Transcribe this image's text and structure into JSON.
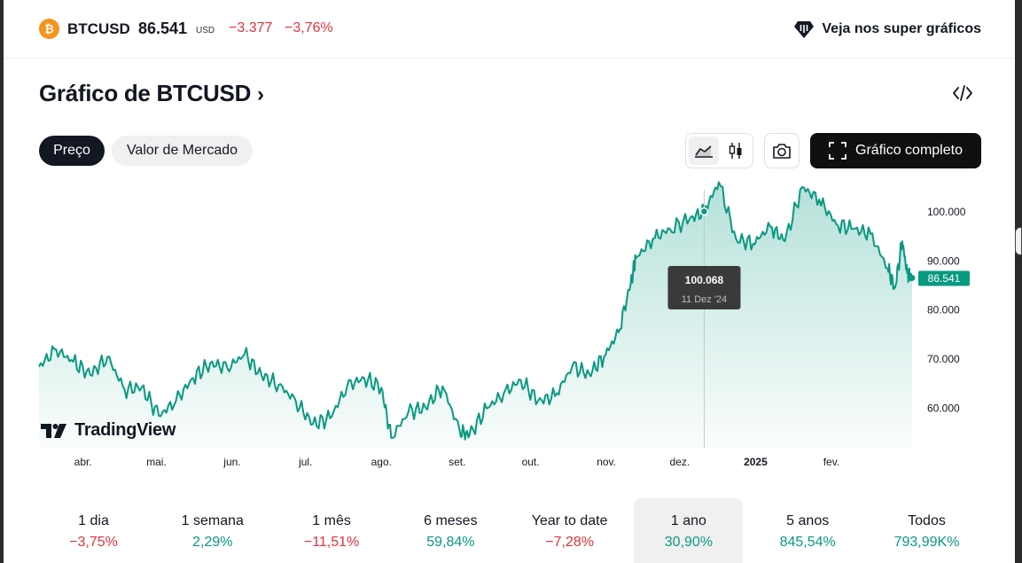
{
  "header": {
    "coin_glyph": "₿",
    "symbol": "BTCUSD",
    "price": "86.541",
    "currency": "USD",
    "change": "−3.377",
    "change_pct": "−3,76%",
    "super_charts_label": "Veja nos super gráficos"
  },
  "page": {
    "title": "Gráfico de BTCUSD",
    "chevron": "›"
  },
  "tabs": [
    {
      "label": "Preço",
      "active": true
    },
    {
      "label": "Valor de Mercado",
      "active": false
    }
  ],
  "toolbar": {
    "full_chart_label": "Gráfico completo"
  },
  "colors": {
    "line": "#089981",
    "negative": "#e0333c",
    "positive": "#089981",
    "tooltip_bg": "#3a3a3a"
  },
  "chart_data": {
    "type": "area",
    "x_tick_labels": [
      "abr.",
      "mai.",
      "jun.",
      "jul.",
      "ago.",
      "set.",
      "out.",
      "nov.",
      "dez.",
      "2025",
      "fev."
    ],
    "y_tick_labels": [
      "100.000",
      "90.000",
      "80.000",
      "70.000",
      "60.000"
    ],
    "yticks": [
      100000,
      90000,
      80000,
      70000,
      60000
    ],
    "ylim": [
      52000,
      107000
    ],
    "last_value_label": "86.541",
    "last_value": 86541,
    "tooltip": {
      "value": "100.068",
      "date": "11 Dez '24",
      "x": "2024-12-11",
      "y": 100068
    },
    "series": [
      {
        "x": [
          "2024-03-14",
          "2024-03-21",
          "2024-03-28",
          "2024-04-04",
          "2024-04-11",
          "2024-04-18",
          "2024-04-25",
          "2024-05-02",
          "2024-05-09",
          "2024-05-16",
          "2024-05-23",
          "2024-05-30",
          "2024-06-06",
          "2024-06-13",
          "2024-06-20",
          "2024-06-27",
          "2024-07-04",
          "2024-07-11",
          "2024-07-18",
          "2024-07-25",
          "2024-08-01",
          "2024-08-05",
          "2024-08-12",
          "2024-08-19",
          "2024-08-26",
          "2024-09-02",
          "2024-09-06",
          "2024-09-13",
          "2024-09-20",
          "2024-09-27",
          "2024-10-04",
          "2024-10-11",
          "2024-10-18",
          "2024-10-25",
          "2024-10-31",
          "2024-11-06",
          "2024-11-11",
          "2024-11-13",
          "2024-11-20",
          "2024-11-27",
          "2024-12-05",
          "2024-12-11",
          "2024-12-17",
          "2024-12-24",
          "2024-12-31",
          "2025-01-07",
          "2025-01-13",
          "2025-01-20",
          "2025-01-27",
          "2025-02-03",
          "2025-02-10",
          "2025-02-17",
          "2025-02-24",
          "2025-02-27",
          "2025-03-02",
          "2025-03-04",
          "2025-03-06"
        ],
        "y": [
          68500,
          72000,
          69500,
          66800,
          70500,
          63800,
          64300,
          58500,
          61500,
          66200,
          69200,
          68200,
          71000,
          66700,
          64800,
          61500,
          56800,
          58000,
          64500,
          66200,
          64200,
          54000,
          59200,
          60200,
          64500,
          55500,
          54500,
          60000,
          63000,
          65800,
          61500,
          62500,
          68500,
          67000,
          70500,
          75500,
          85500,
          90500,
          94500,
          96500,
          98500,
          100068,
          106000,
          94500,
          93500,
          97000,
          94000,
          105000,
          102500,
          97500,
          96500,
          95500,
          88500,
          84500,
          94000,
          87500,
          86541
        ]
      }
    ]
  },
  "brand": {
    "name": "TradingView"
  },
  "periods": [
    {
      "label": "1 dia",
      "value": "−3,75%",
      "sign": "neg",
      "selected": false
    },
    {
      "label": "1 semana",
      "value": "2,29%",
      "sign": "pos",
      "selected": false
    },
    {
      "label": "1 mês",
      "value": "−11,51%",
      "sign": "neg",
      "selected": false
    },
    {
      "label": "6 meses",
      "value": "59,84%",
      "sign": "pos",
      "selected": false
    },
    {
      "label": "Year to date",
      "value": "−7,28%",
      "sign": "neg",
      "selected": false
    },
    {
      "label": "1 ano",
      "value": "30,90%",
      "sign": "pos",
      "selected": true
    },
    {
      "label": "5 anos",
      "value": "845,54%",
      "sign": "pos",
      "selected": false
    },
    {
      "label": "Todos",
      "value": "793,99K%",
      "sign": "pos",
      "selected": false
    }
  ]
}
